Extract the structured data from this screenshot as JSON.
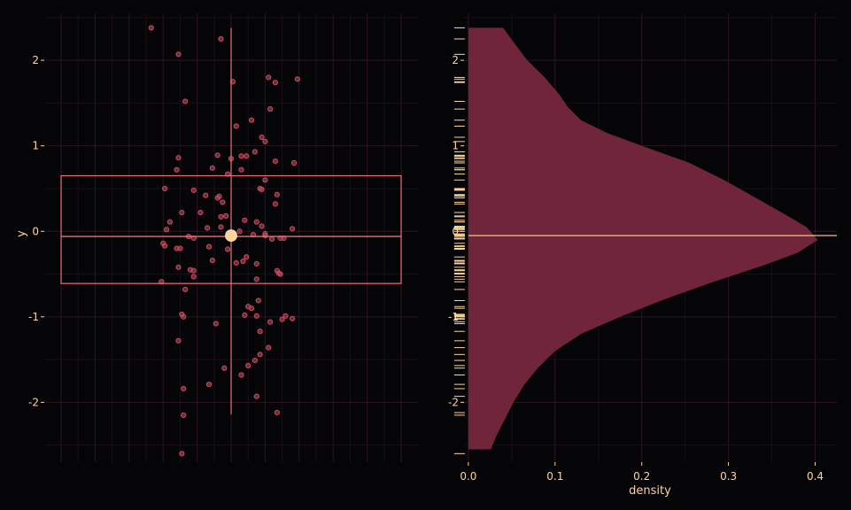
{
  "colors": {
    "background": "#050508",
    "grid_major": "#2a1620",
    "grid_minor": "#1a0e14",
    "point": "#c94a60",
    "box": "#e8707a",
    "highlight": "#ffd59a",
    "density_fill": "#70253a",
    "rug": "#ffd59a",
    "text": "#ffd59a"
  },
  "chart_data": [
    {
      "type": "scatter",
      "xlabel": "",
      "ylabel": "y",
      "ylim": [
        -2.7,
        2.55
      ],
      "x_tick_labels": [],
      "y_ticks": [
        -2,
        -1,
        0,
        1,
        2
      ],
      "y_tick_labels": [
        "-2",
        "-1",
        "0",
        "1",
        "2"
      ],
      "grid": true,
      "x_range": [
        -1,
        1
      ],
      "summary": {
        "mean": -0.05,
        "median": -0.06,
        "q1": -0.61,
        "q3": 0.65,
        "whisker_low": -2.14,
        "whisker_high": 2.38,
        "box_x": [
          -1.0,
          1.0
        ],
        "whisker_x": 0
      },
      "points": [
        {
          "x": -0.47,
          "y": 2.38
        },
        {
          "x": -0.06,
          "y": 2.25
        },
        {
          "x": -0.31,
          "y": 2.07
        },
        {
          "x": 0.39,
          "y": 1.78
        },
        {
          "x": 0.22,
          "y": 1.8
        },
        {
          "x": 0.26,
          "y": 1.74
        },
        {
          "x": 0.01,
          "y": 1.75
        },
        {
          "x": -0.27,
          "y": 1.52
        },
        {
          "x": 0.23,
          "y": 1.43
        },
        {
          "x": 0.12,
          "y": 1.3
        },
        {
          "x": 0.03,
          "y": 1.23
        },
        {
          "x": 0.18,
          "y": 1.1
        },
        {
          "x": 0.2,
          "y": 1.05
        },
        {
          "x": 0.14,
          "y": 0.93
        },
        {
          "x": 0.09,
          "y": 0.88
        },
        {
          "x": 0.06,
          "y": 0.88
        },
        {
          "x": -0.08,
          "y": 0.89
        },
        {
          "x": 0.0,
          "y": 0.85
        },
        {
          "x": -0.31,
          "y": 0.86
        },
        {
          "x": 0.26,
          "y": 0.82
        },
        {
          "x": 0.37,
          "y": 0.8
        },
        {
          "x": -0.32,
          "y": 0.72
        },
        {
          "x": -0.11,
          "y": 0.74
        },
        {
          "x": 0.06,
          "y": 0.72
        },
        {
          "x": -0.02,
          "y": 0.67
        },
        {
          "x": 0.2,
          "y": 0.6
        },
        {
          "x": -0.22,
          "y": 0.48
        },
        {
          "x": 0.17,
          "y": 0.5
        },
        {
          "x": 0.18,
          "y": 0.49
        },
        {
          "x": -0.39,
          "y": 0.5
        },
        {
          "x": 0.27,
          "y": 0.43
        },
        {
          "x": -0.15,
          "y": 0.42
        },
        {
          "x": -0.08,
          "y": 0.39
        },
        {
          "x": -0.07,
          "y": 0.41
        },
        {
          "x": -0.05,
          "y": 0.34
        },
        {
          "x": 0.26,
          "y": 0.32
        },
        {
          "x": -0.29,
          "y": 0.22
        },
        {
          "x": -0.18,
          "y": 0.22
        },
        {
          "x": -0.03,
          "y": 0.18
        },
        {
          "x": -0.06,
          "y": 0.17
        },
        {
          "x": 0.08,
          "y": 0.13
        },
        {
          "x": -0.36,
          "y": 0.11
        },
        {
          "x": 0.15,
          "y": 0.11
        },
        {
          "x": -0.14,
          "y": 0.04
        },
        {
          "x": -0.06,
          "y": 0.05
        },
        {
          "x": 0.18,
          "y": 0.06
        },
        {
          "x": 0.36,
          "y": 0.03
        },
        {
          "x": -0.38,
          "y": 0.02
        },
        {
          "x": 0.05,
          "y": 0.0
        },
        {
          "x": 0.2,
          "y": -0.03
        },
        {
          "x": 0.2,
          "y": -0.05
        },
        {
          "x": 0.13,
          "y": -0.04
        },
        {
          "x": 0.29,
          "y": -0.08
        },
        {
          "x": -0.25,
          "y": -0.06
        },
        {
          "x": 0.24,
          "y": -0.09
        },
        {
          "x": 0.31,
          "y": -0.08
        },
        {
          "x": -0.22,
          "y": -0.08
        },
        {
          "x": -0.4,
          "y": -0.14
        },
        {
          "x": -0.39,
          "y": -0.17
        },
        {
          "x": -0.13,
          "y": -0.18
        },
        {
          "x": -0.32,
          "y": -0.2
        },
        {
          "x": -0.3,
          "y": -0.2
        },
        {
          "x": -0.02,
          "y": -0.21
        },
        {
          "x": 0.09,
          "y": -0.3
        },
        {
          "x": 0.07,
          "y": -0.35
        },
        {
          "x": 0.03,
          "y": -0.37
        },
        {
          "x": -0.11,
          "y": -0.34
        },
        {
          "x": 0.15,
          "y": -0.38
        },
        {
          "x": -0.31,
          "y": -0.42
        },
        {
          "x": -0.24,
          "y": -0.45
        },
        {
          "x": -0.22,
          "y": -0.46
        },
        {
          "x": 0.27,
          "y": -0.46
        },
        {
          "x": 0.28,
          "y": -0.49
        },
        {
          "x": 0.29,
          "y": -0.5
        },
        {
          "x": -0.22,
          "y": -0.53
        },
        {
          "x": 0.15,
          "y": -0.56
        },
        {
          "x": -0.41,
          "y": -0.59
        },
        {
          "x": -0.27,
          "y": -0.68
        },
        {
          "x": 0.16,
          "y": -0.81
        },
        {
          "x": 0.1,
          "y": -0.88
        },
        {
          "x": 0.12,
          "y": -0.9
        },
        {
          "x": 0.08,
          "y": -0.98
        },
        {
          "x": 0.15,
          "y": -0.99
        },
        {
          "x": 0.32,
          "y": -0.99
        },
        {
          "x": 0.36,
          "y": -1.02
        },
        {
          "x": 0.3,
          "y": -1.03
        },
        {
          "x": 0.23,
          "y": -1.06
        },
        {
          "x": -0.29,
          "y": -0.97
        },
        {
          "x": -0.28,
          "y": -1.0
        },
        {
          "x": -0.09,
          "y": -1.08
        },
        {
          "x": 0.17,
          "y": -1.17
        },
        {
          "x": -0.31,
          "y": -1.28
        },
        {
          "x": 0.22,
          "y": -1.36
        },
        {
          "x": 0.17,
          "y": -1.44
        },
        {
          "x": 0.14,
          "y": -1.51
        },
        {
          "x": 0.1,
          "y": -1.57
        },
        {
          "x": -0.04,
          "y": -1.6
        },
        {
          "x": 0.06,
          "y": -1.68
        },
        {
          "x": -0.13,
          "y": -1.79
        },
        {
          "x": -0.28,
          "y": -1.84
        },
        {
          "x": 0.15,
          "y": -1.93
        },
        {
          "x": 0.27,
          "y": -2.12
        },
        {
          "x": -0.28,
          "y": -2.15
        },
        {
          "x": -0.29,
          "y": -2.6
        }
      ]
    },
    {
      "type": "area",
      "xlabel": "density",
      "ylabel": "",
      "xlim": [
        -0.005,
        0.425
      ],
      "ylim": [
        -2.7,
        2.55
      ],
      "x_ticks": [
        0.0,
        0.1,
        0.2,
        0.3,
        0.4
      ],
      "x_tick_labels": [
        "0.0",
        "0.1",
        "0.2",
        "0.3",
        "0.4"
      ],
      "y_ticks": [
        -2,
        -1,
        0,
        1,
        2
      ],
      "y_tick_labels": [
        "-2",
        "-1",
        "0",
        "1",
        "2"
      ],
      "grid": true,
      "reference_line_y": -0.05,
      "density_curve": [
        {
          "y": 2.38,
          "density": 0.04
        },
        {
          "y": 2.2,
          "density": 0.053
        },
        {
          "y": 2.0,
          "density": 0.068
        },
        {
          "y": 1.8,
          "density": 0.088
        },
        {
          "y": 1.6,
          "density": 0.105
        },
        {
          "y": 1.45,
          "density": 0.115
        },
        {
          "y": 1.3,
          "density": 0.13
        },
        {
          "y": 1.15,
          "density": 0.16
        },
        {
          "y": 1.0,
          "density": 0.2
        },
        {
          "y": 0.8,
          "density": 0.255
        },
        {
          "y": 0.6,
          "density": 0.295
        },
        {
          "y": 0.4,
          "density": 0.33
        },
        {
          "y": 0.2,
          "density": 0.365
        },
        {
          "y": 0.05,
          "density": 0.39
        },
        {
          "y": -0.1,
          "density": 0.403
        },
        {
          "y": -0.25,
          "density": 0.38
        },
        {
          "y": -0.4,
          "density": 0.34
        },
        {
          "y": -0.6,
          "density": 0.28
        },
        {
          "y": -0.8,
          "density": 0.225
        },
        {
          "y": -1.0,
          "density": 0.175
        },
        {
          "y": -1.2,
          "density": 0.13
        },
        {
          "y": -1.4,
          "density": 0.1
        },
        {
          "y": -1.6,
          "density": 0.08
        },
        {
          "y": -1.8,
          "density": 0.064
        },
        {
          "y": -2.0,
          "density": 0.052
        },
        {
          "y": -2.2,
          "density": 0.042
        },
        {
          "y": -2.4,
          "density": 0.032
        },
        {
          "y": -2.55,
          "density": 0.026
        }
      ]
    }
  ]
}
